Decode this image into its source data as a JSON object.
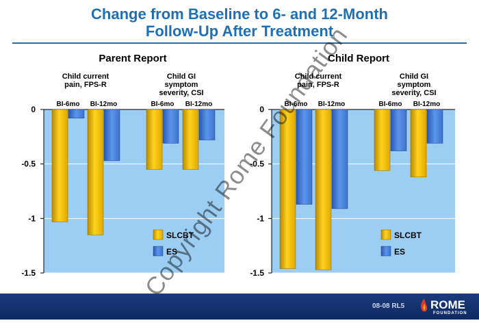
{
  "slide": {
    "title_line1": "Change from Baseline to 6- and 12-Month",
    "title_line2": "Follow-Up After Treatment",
    "watermark": "Copyright Rome Foundation",
    "footer_code": "08-08  RL5",
    "logo_word": "ROME",
    "logo_sub": "FOUNDATION"
  },
  "colors": {
    "title": "#1f6fb5",
    "plot_bg": "#9ccdf2",
    "slcbt": "#f2c200",
    "es": "#3f7fdc",
    "footer": "#0e2a63"
  },
  "chart_data": [
    {
      "type": "bar",
      "title": "Parent Report",
      "ylim": [
        -1.5,
        0
      ],
      "yticks": [
        0,
        -0.5,
        -1,
        -1.5
      ],
      "ytick_labels": [
        "0",
        "-0.5",
        "-1",
        "-1.5"
      ],
      "grid": true,
      "legend_placement": "bottom-right",
      "groups": [
        {
          "label_lines": [
            "Child current",
            "pain, FPS-R"
          ]
        },
        {
          "label_lines": [
            "Child GI",
            "symptom",
            "severity, CSI"
          ]
        }
      ],
      "categories": [
        "BI-6mo",
        "BI-12mo",
        "BI-6mo",
        "BI-12mo"
      ],
      "series": [
        {
          "name": "SLCBT",
          "values": [
            -1.03,
            -1.15,
            -0.55,
            -0.55
          ]
        },
        {
          "name": "ES",
          "values": [
            -0.08,
            -0.47,
            -0.31,
            -0.28
          ]
        }
      ]
    },
    {
      "type": "bar",
      "title": "Child Report",
      "ylim": [
        -1.5,
        0
      ],
      "yticks": [
        0,
        -0.5,
        -1,
        -1.5
      ],
      "ytick_labels": [
        "0",
        "-0.5",
        "-1",
        "-1.5"
      ],
      "grid": true,
      "legend_placement": "bottom-right",
      "groups": [
        {
          "label_lines": [
            "Child current",
            "pain, FPS-R"
          ]
        },
        {
          "label_lines": [
            "Child GI",
            "symptom",
            "severity, CSI"
          ]
        }
      ],
      "categories": [
        "BI-6mo",
        "BI-12mo",
        "BI-6mo",
        "BI-12mo"
      ],
      "series": [
        {
          "name": "SLCBT",
          "values": [
            -1.46,
            -1.47,
            -0.56,
            -0.62
          ]
        },
        {
          "name": "ES",
          "values": [
            -0.87,
            -0.91,
            -0.38,
            -0.31
          ]
        }
      ]
    }
  ]
}
